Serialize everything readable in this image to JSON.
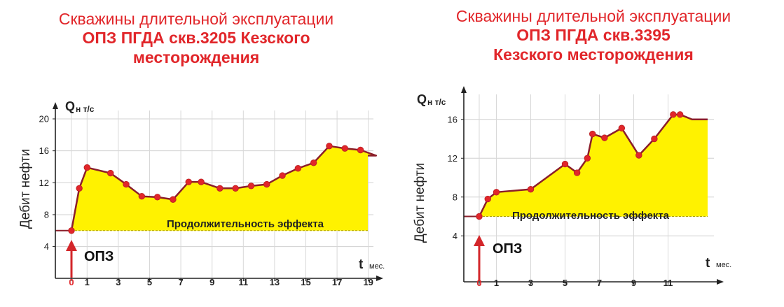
{
  "chart_data": [
    {
      "type": "area",
      "title_lines": [
        "Скважины длительной эксплуатации",
        "ОПЗ ПГДА скв.3205 Кезского",
        "месторождения"
      ],
      "ylabel": "Дебит нефти",
      "q_symbol": "Q",
      "q_sub": "н т/с",
      "t_symbol": "t",
      "t_unit": "мес.",
      "baseline": 6,
      "ylim": [
        3,
        20
      ],
      "xlim": [
        -2,
        19
      ],
      "yticks": [
        "4",
        "8",
        "12",
        "16",
        "20"
      ],
      "xticks": [
        "0",
        "1",
        "3",
        "5",
        "7",
        "9",
        "11",
        "13",
        "15",
        "17",
        "19"
      ],
      "annotation": "Продолжительность эффекта",
      "event_label": "ОПЗ",
      "pre_series": {
        "x": [
          -2,
          0
        ],
        "y": [
          6,
          6
        ]
      },
      "series": {
        "x": [
          0,
          0.5,
          1,
          2.5,
          3.5,
          4.5,
          5.5,
          6.5,
          7.5,
          8.3,
          9.5,
          10.5,
          11.5,
          12.5,
          13.5,
          14.5,
          15.5,
          16.5,
          17.5,
          18.5,
          19.5
        ],
        "y": [
          6,
          11.3,
          13.9,
          13.2,
          11.8,
          10.3,
          10.2,
          9.9,
          12.1,
          12.1,
          11.3,
          11.3,
          11.6,
          11.8,
          12.9,
          13.8,
          14.5,
          16.6,
          16.3,
          16.1,
          15.4
        ]
      }
    },
    {
      "type": "area",
      "title_lines": [
        "Скважины длительной эксплуатации",
        "ОПЗ ПГДА скв.3395",
        "Кезского месторождения"
      ],
      "ylabel": "Дебит нефти",
      "q_symbol": "Q",
      "q_sub": "н т/с",
      "t_symbol": "t",
      "t_unit": "мес.",
      "baseline": 6,
      "ylim": [
        2,
        18
      ],
      "xlim": [
        -2,
        13
      ],
      "yticks": [
        "4",
        "8",
        "12",
        "16"
      ],
      "xticks": [
        "0",
        "1",
        "3",
        "5",
        "7",
        "9",
        "11"
      ],
      "annotation": "Продолжительность эффекта",
      "event_label": "ОПЗ",
      "pre_series": {
        "x": [
          -2,
          0
        ],
        "y": [
          6,
          6
        ]
      },
      "series": {
        "x": [
          0,
          0.5,
          1,
          3,
          5,
          5.7,
          6.3,
          6.6,
          7.3,
          8.3,
          9.3,
          10.2,
          11.3,
          11.7,
          12.4
        ],
        "y": [
          6,
          7.8,
          8.5,
          8.8,
          11.4,
          10.5,
          12.0,
          14.5,
          14.1,
          15.1,
          12.3,
          14.0,
          16.5,
          16.5,
          16.0
        ]
      }
    }
  ]
}
